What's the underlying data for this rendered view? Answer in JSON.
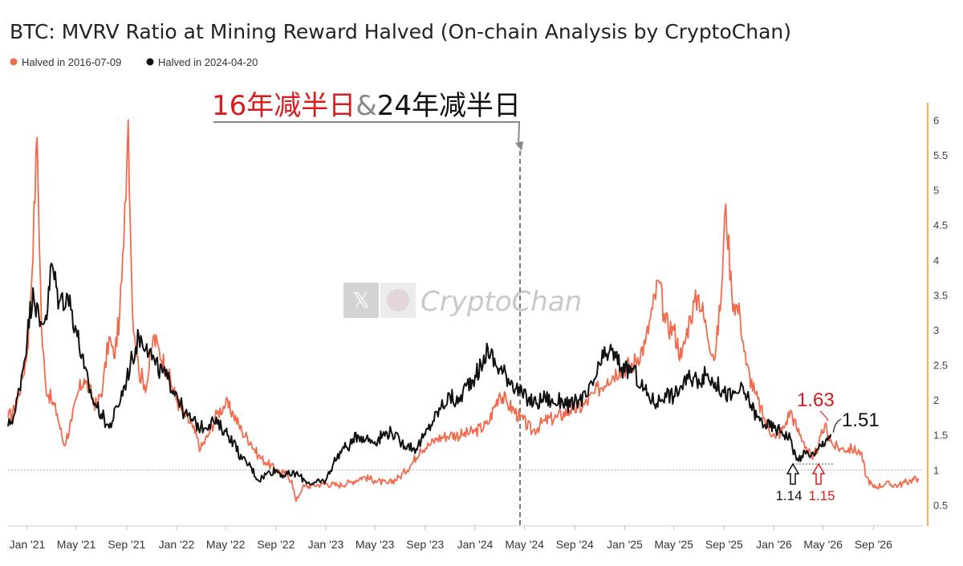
{
  "chart_data": {
    "type": "line",
    "title": "BTC: MVRV Ratio at Mining Reward Halved (On-chain Analysis by CryptoChan)",
    "legend": [
      {
        "name": "Halved in 2016-07-09",
        "color": "#f26a4b"
      },
      {
        "name": "Halved in 2024-04-20",
        "color": "#111111"
      }
    ],
    "legend_placement": "top-left",
    "x_range": [
      "2020-11-15",
      "2026-12-31"
    ],
    "x_ticks": [
      {
        "label": "Jan '21",
        "date": "2021-01-01"
      },
      {
        "label": "May '21",
        "date": "2021-05-01"
      },
      {
        "label": "Sep '21",
        "date": "2021-09-01"
      },
      {
        "label": "Jan '22",
        "date": "2022-01-01"
      },
      {
        "label": "May '22",
        "date": "2022-05-01"
      },
      {
        "label": "Sep '22",
        "date": "2022-09-01"
      },
      {
        "label": "Jan '23",
        "date": "2023-01-01"
      },
      {
        "label": "May '23",
        "date": "2023-05-01"
      },
      {
        "label": "Sep '23",
        "date": "2023-09-01"
      },
      {
        "label": "Jan '24",
        "date": "2024-01-01"
      },
      {
        "label": "May '24",
        "date": "2024-05-01"
      },
      {
        "label": "Sep '24",
        "date": "2024-09-01"
      },
      {
        "label": "Jan '25",
        "date": "2025-01-01"
      },
      {
        "label": "May '25",
        "date": "2025-05-01"
      },
      {
        "label": "Sep '25",
        "date": "2025-09-01"
      },
      {
        "label": "Jan '26",
        "date": "2026-01-01"
      },
      {
        "label": "May '26",
        "date": "2026-05-01"
      },
      {
        "label": "Sep '26",
        "date": "2026-09-01"
      }
    ],
    "y_axis_position": "right",
    "ylim": [
      0.2,
      6.2
    ],
    "y_ticks": [
      0.5,
      1,
      1.5,
      2,
      2.5,
      3,
      3.5,
      4,
      4.5,
      5,
      5.5,
      6
    ],
    "reference_line": 1,
    "halving_marker_date": "2024-04-20",
    "grid": false,
    "series": [
      {
        "name": "Halved in 2016-07-09",
        "color": "#f26a4b",
        "points": [
          [
            "2020-11-15",
            1.75
          ],
          [
            "2020-12-01",
            1.85
          ],
          [
            "2020-12-20",
            2.3
          ],
          [
            "2021-01-01",
            2.7
          ],
          [
            "2021-01-10",
            3.5
          ],
          [
            "2021-01-25",
            5.75
          ],
          [
            "2021-02-05",
            3.0
          ],
          [
            "2021-02-15",
            2.2
          ],
          [
            "2021-03-01",
            2.0
          ],
          [
            "2021-03-15",
            1.8
          ],
          [
            "2021-04-01",
            1.35
          ],
          [
            "2021-04-20",
            1.7
          ],
          [
            "2021-05-05",
            2.1
          ],
          [
            "2021-05-20",
            2.3
          ],
          [
            "2021-06-01",
            2.15
          ],
          [
            "2021-06-20",
            1.9
          ],
          [
            "2021-07-05",
            2.2
          ],
          [
            "2021-07-20",
            2.9
          ],
          [
            "2021-08-01",
            2.6
          ],
          [
            "2021-08-15",
            3.2
          ],
          [
            "2021-08-25",
            4.2
          ],
          [
            "2021-09-05",
            6.0
          ],
          [
            "2021-09-15",
            3.3
          ],
          [
            "2021-10-01",
            2.4
          ],
          [
            "2021-10-20",
            2.2
          ],
          [
            "2021-11-05",
            2.9
          ],
          [
            "2021-11-20",
            2.7
          ],
          [
            "2021-12-10",
            2.4
          ],
          [
            "2022-01-01",
            2.0
          ],
          [
            "2022-01-20",
            1.8
          ],
          [
            "2022-02-10",
            1.6
          ],
          [
            "2022-03-01",
            1.3
          ],
          [
            "2022-03-20",
            1.5
          ],
          [
            "2022-04-10",
            1.8
          ],
          [
            "2022-05-01",
            1.95
          ],
          [
            "2022-05-20",
            1.8
          ],
          [
            "2022-06-10",
            1.55
          ],
          [
            "2022-07-01",
            1.4
          ],
          [
            "2022-07-20",
            1.2
          ],
          [
            "2022-08-10",
            1.1
          ],
          [
            "2022-09-01",
            1.0
          ],
          [
            "2022-09-20",
            0.95
          ],
          [
            "2022-10-10",
            0.85
          ],
          [
            "2022-10-20",
            0.55
          ],
          [
            "2022-11-05",
            0.75
          ],
          [
            "2022-12-01",
            0.78
          ],
          [
            "2023-01-01",
            0.8
          ],
          [
            "2023-02-01",
            0.78
          ],
          [
            "2023-03-01",
            0.82
          ],
          [
            "2023-04-01",
            0.9
          ],
          [
            "2023-05-01",
            0.85
          ],
          [
            "2023-06-01",
            0.8
          ],
          [
            "2023-07-01",
            0.9
          ],
          [
            "2023-08-01",
            1.1
          ],
          [
            "2023-08-20",
            1.3
          ],
          [
            "2023-09-10",
            1.35
          ],
          [
            "2023-10-01",
            1.45
          ],
          [
            "2023-11-01",
            1.5
          ],
          [
            "2023-12-01",
            1.5
          ],
          [
            "2024-01-01",
            1.55
          ],
          [
            "2024-02-01",
            1.65
          ],
          [
            "2024-03-01",
            2.1
          ],
          [
            "2024-03-20",
            1.95
          ],
          [
            "2024-04-20",
            1.75
          ],
          [
            "2024-05-20",
            1.55
          ],
          [
            "2024-06-20",
            1.7
          ],
          [
            "2024-07-20",
            1.75
          ],
          [
            "2024-08-20",
            1.85
          ],
          [
            "2024-09-20",
            1.9
          ],
          [
            "2024-10-20",
            2.1
          ],
          [
            "2024-11-20",
            2.3
          ],
          [
            "2024-12-20",
            2.45
          ],
          [
            "2025-01-20",
            2.5
          ],
          [
            "2025-02-20",
            2.8
          ],
          [
            "2025-03-10",
            3.3
          ],
          [
            "2025-03-25",
            3.7
          ],
          [
            "2025-04-10",
            3.1
          ],
          [
            "2025-05-01",
            3.0
          ],
          [
            "2025-05-20",
            2.6
          ],
          [
            "2025-06-10",
            3.2
          ],
          [
            "2025-07-01",
            3.5
          ],
          [
            "2025-07-20",
            3.0
          ],
          [
            "2025-08-10",
            2.6
          ],
          [
            "2025-08-25",
            3.5
          ],
          [
            "2025-09-05",
            4.8
          ],
          [
            "2025-09-20",
            3.5
          ],
          [
            "2025-10-10",
            3.2
          ],
          [
            "2025-10-25",
            2.5
          ],
          [
            "2025-11-15",
            2.1
          ],
          [
            "2025-12-10",
            1.7
          ],
          [
            "2026-01-05",
            1.45
          ],
          [
            "2026-01-25",
            1.6
          ],
          [
            "2026-02-10",
            1.85
          ],
          [
            "2026-02-25",
            1.6
          ],
          [
            "2026-03-15",
            1.4
          ],
          [
            "2026-04-05",
            1.15
          ],
          [
            "2026-04-20",
            1.35
          ],
          [
            "2026-05-05",
            1.63
          ],
          [
            "2026-05-25",
            1.35
          ],
          [
            "2026-06-15",
            1.3
          ],
          [
            "2026-07-10",
            1.3
          ],
          [
            "2026-08-01",
            1.25
          ],
          [
            "2026-08-15",
            0.9
          ],
          [
            "2026-09-01",
            0.75
          ],
          [
            "2026-10-01",
            0.8
          ],
          [
            "2026-11-01",
            0.78
          ],
          [
            "2026-12-01",
            0.85
          ],
          [
            "2026-12-20",
            0.88
          ]
        ]
      },
      {
        "name": "Halved in 2024-04-20",
        "color": "#111111",
        "points": [
          [
            "2020-11-15",
            1.62
          ],
          [
            "2020-12-01",
            1.8
          ],
          [
            "2020-12-20",
            2.4
          ],
          [
            "2021-01-01",
            2.9
          ],
          [
            "2021-01-15",
            3.6
          ],
          [
            "2021-02-01",
            3.05
          ],
          [
            "2021-02-20",
            3.3
          ],
          [
            "2021-03-01",
            3.95
          ],
          [
            "2021-03-20",
            3.4
          ],
          [
            "2021-04-10",
            3.5
          ],
          [
            "2021-05-01",
            3.0
          ],
          [
            "2021-05-20",
            2.45
          ],
          [
            "2021-06-10",
            2.0
          ],
          [
            "2021-07-01",
            1.8
          ],
          [
            "2021-07-20",
            1.6
          ],
          [
            "2021-08-10",
            1.9
          ],
          [
            "2021-09-01",
            2.3
          ],
          [
            "2021-09-15",
            2.6
          ],
          [
            "2021-10-01",
            2.9
          ],
          [
            "2021-10-20",
            2.8
          ],
          [
            "2021-11-10",
            2.5
          ],
          [
            "2021-12-10",
            2.3
          ],
          [
            "2022-01-01",
            2.1
          ],
          [
            "2022-01-20",
            1.8
          ],
          [
            "2022-02-10",
            1.7
          ],
          [
            "2022-03-01",
            1.6
          ],
          [
            "2022-04-01",
            1.7
          ],
          [
            "2022-05-01",
            1.55
          ],
          [
            "2022-05-20",
            1.4
          ],
          [
            "2022-06-10",
            1.15
          ],
          [
            "2022-07-01",
            1.05
          ],
          [
            "2022-07-20",
            0.85
          ],
          [
            "2022-08-10",
            0.95
          ],
          [
            "2022-09-01",
            1.0
          ],
          [
            "2022-09-20",
            0.92
          ],
          [
            "2022-10-20",
            0.95
          ],
          [
            "2022-11-10",
            0.85
          ],
          [
            "2022-12-01",
            0.8
          ],
          [
            "2023-01-01",
            0.85
          ],
          [
            "2023-01-20",
            1.1
          ],
          [
            "2023-02-10",
            1.3
          ],
          [
            "2023-03-01",
            1.35
          ],
          [
            "2023-03-20",
            1.5
          ],
          [
            "2023-04-10",
            1.45
          ],
          [
            "2023-05-01",
            1.4
          ],
          [
            "2023-05-20",
            1.5
          ],
          [
            "2023-06-10",
            1.55
          ],
          [
            "2023-07-01",
            1.4
          ],
          [
            "2023-07-20",
            1.35
          ],
          [
            "2023-08-10",
            1.3
          ],
          [
            "2023-09-01",
            1.5
          ],
          [
            "2023-09-20",
            1.7
          ],
          [
            "2023-10-10",
            1.9
          ],
          [
            "2023-11-01",
            2.05
          ],
          [
            "2023-11-20",
            1.95
          ],
          [
            "2023-12-10",
            2.2
          ],
          [
            "2024-01-01",
            2.35
          ],
          [
            "2024-01-20",
            2.5
          ],
          [
            "2024-02-01",
            2.75
          ],
          [
            "2024-02-20",
            2.5
          ],
          [
            "2024-03-10",
            2.4
          ],
          [
            "2024-04-01",
            2.25
          ],
          [
            "2024-04-20",
            2.1
          ],
          [
            "2024-05-10",
            2.0
          ],
          [
            "2024-06-01",
            1.95
          ],
          [
            "2024-06-20",
            2.05
          ],
          [
            "2024-07-10",
            1.95
          ],
          [
            "2024-08-01",
            2.0
          ],
          [
            "2024-08-20",
            1.9
          ],
          [
            "2024-09-10",
            2.0
          ],
          [
            "2024-10-01",
            2.05
          ],
          [
            "2024-10-20",
            2.3
          ],
          [
            "2024-11-10",
            2.6
          ],
          [
            "2024-11-25",
            2.7
          ],
          [
            "2024-12-10",
            2.6
          ],
          [
            "2025-01-01",
            2.4
          ],
          [
            "2025-01-20",
            2.45
          ],
          [
            "2025-02-10",
            2.2
          ],
          [
            "2025-03-01",
            2.05
          ],
          [
            "2025-03-20",
            1.95
          ],
          [
            "2025-04-10",
            2.1
          ],
          [
            "2025-05-01",
            2.05
          ],
          [
            "2025-05-20",
            2.2
          ],
          [
            "2025-06-10",
            2.3
          ],
          [
            "2025-07-01",
            2.3
          ],
          [
            "2025-07-20",
            2.35
          ],
          [
            "2025-08-10",
            2.25
          ],
          [
            "2025-09-01",
            2.1
          ],
          [
            "2025-09-20",
            2.05
          ],
          [
            "2025-10-10",
            2.15
          ],
          [
            "2025-11-01",
            2.0
          ],
          [
            "2025-11-20",
            1.75
          ],
          [
            "2025-12-10",
            1.65
          ],
          [
            "2026-01-01",
            1.6
          ],
          [
            "2026-01-20",
            1.55
          ],
          [
            "2026-02-10",
            1.45
          ],
          [
            "2026-02-25",
            1.14
          ],
          [
            "2026-03-10",
            1.2
          ],
          [
            "2026-03-25",
            1.25
          ],
          [
            "2026-04-10",
            1.2
          ],
          [
            "2026-04-25",
            1.35
          ],
          [
            "2026-05-10",
            1.45
          ],
          [
            "2026-05-20",
            1.51
          ]
        ]
      }
    ],
    "annotations": [
      {
        "text": "1.63",
        "color": "#d81b1b",
        "date": "2026-05-05",
        "value": 1.63
      },
      {
        "text": "1.51",
        "color": "#111111",
        "date": "2026-05-20",
        "value": 1.51
      },
      {
        "text": "1.14",
        "color": "#111111",
        "date": "2026-02-25",
        "value": 1.14
      },
      {
        "text": "1.15",
        "color": "#d81b1b",
        "date": "2026-04-05",
        "value": 1.15
      }
    ],
    "header_annotation": {
      "part1": "16年减半日",
      "separator": "&",
      "part2": "24年减半日",
      "part1_color": "#d81b1b",
      "separator_color": "#888888",
      "part2_color": "#111111"
    }
  },
  "watermark": {
    "text": "CryptoChan",
    "icon": "x-logo-icon"
  }
}
